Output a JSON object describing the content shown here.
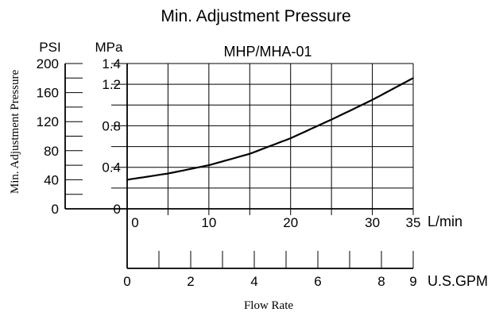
{
  "chart_data": {
    "type": "line",
    "title": "Min. Adjustment Pressure",
    "subtitle": "MHP/MHA-01",
    "ylabel": "Min. Adjustment Pressure",
    "xlabel": "Flow Rate",
    "y_units": {
      "left": "PSI",
      "right": "MPa"
    },
    "x_units": {
      "primary": "L/min",
      "secondary": "U.S.GPM"
    },
    "ylim_mpa": [
      0,
      1.4
    ],
    "ylim_psi": [
      0,
      200
    ],
    "xlim_lmin": [
      0,
      35
    ],
    "xlim_gpm": [
      0,
      9
    ],
    "psi_ticks": [
      "0",
      "40",
      "80",
      "120",
      "160",
      "200"
    ],
    "mpa_ticks": [
      "0",
      "0.4",
      "0.8",
      "1.2",
      "1.4"
    ],
    "lmin_ticks": [
      "0",
      "10",
      "20",
      "30",
      "35"
    ],
    "gpm_ticks": [
      "0",
      "2",
      "4",
      "6",
      "8",
      "9"
    ],
    "grid": true,
    "series": [
      {
        "x": [
          0,
          5,
          10,
          15,
          20,
          25,
          30,
          35
        ],
        "y": [
          0.28,
          0.34,
          0.42,
          0.53,
          0.68,
          0.86,
          1.05,
          1.26
        ]
      }
    ]
  }
}
